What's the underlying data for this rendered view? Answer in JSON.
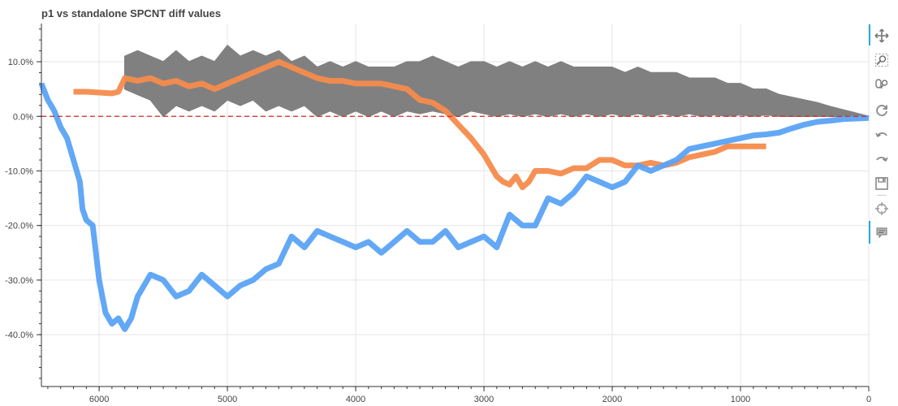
{
  "chart_data": {
    "type": "line",
    "title": "p1 vs standalone SPCNT diff values",
    "xlabel": "",
    "ylabel": "",
    "xlim": [
      6450,
      0
    ],
    "ylim": [
      -49.5,
      17
    ],
    "x_ticks": [
      6000,
      5000,
      4000,
      3000,
      2000,
      1000,
      0
    ],
    "x_tick_labels": [
      "6000",
      "5000",
      "4000",
      "3000",
      "2000",
      "1000",
      "0"
    ],
    "y_ticks": [
      10,
      0,
      -10,
      -20,
      -30,
      -40
    ],
    "y_tick_labels": [
      "10.0%",
      "0.0%",
      "-10.0%",
      "-20.0%",
      "-30.0%",
      "-40.0%"
    ],
    "grid": true,
    "reference_line": {
      "y": 0,
      "color": "#d62728",
      "style": "dashed"
    },
    "series": [
      {
        "color": "#808080",
        "style": "band",
        "x": [
          5800,
          5700,
          5600,
          5500,
          5400,
          5300,
          5200,
          5100,
          5000,
          4900,
          4800,
          4700,
          4600,
          4500,
          4400,
          4300,
          4200,
          4100,
          4000,
          3900,
          3800,
          3700,
          3600,
          3500,
          3400,
          3300,
          3200,
          3100,
          3000,
          2900,
          2800,
          2700,
          2600,
          2500,
          2400,
          2300,
          2200,
          2100,
          2000,
          1900,
          1800,
          1700,
          1600,
          1500,
          1400,
          1300,
          1200,
          1100,
          1000,
          900,
          800,
          700,
          600,
          500,
          400,
          300,
          200,
          100,
          0
        ],
        "upper": [
          11,
          12,
          11,
          10,
          12,
          10,
          11,
          10,
          13,
          11,
          12,
          11,
          12,
          10,
          11,
          9,
          10,
          9,
          10,
          9,
          9,
          9,
          10,
          10,
          11,
          10,
          9,
          10,
          10,
          9,
          10,
          9,
          10,
          9,
          10,
          9,
          9,
          9,
          9,
          8,
          9,
          8,
          8,
          8,
          7,
          7,
          7,
          6,
          6,
          5,
          5,
          4,
          3.5,
          3,
          2.5,
          1.8,
          1.2,
          0.6,
          0
        ],
        "lower": [
          5,
          4,
          3,
          0,
          2,
          1,
          2,
          1,
          3,
          2,
          3,
          1,
          2,
          1,
          2,
          0,
          1,
          0,
          1,
          0,
          1,
          0,
          1,
          0.5,
          1,
          0.5,
          0,
          1,
          0.5,
          0,
          0.5,
          0,
          0.5,
          0,
          0.5,
          0,
          0.5,
          0,
          0.5,
          0,
          0.5,
          0,
          0.5,
          0,
          0.5,
          0,
          0.3,
          0,
          0.3,
          0,
          0.3,
          0,
          0,
          0,
          0,
          0,
          0,
          0,
          0
        ]
      },
      {
        "color": "#f58b4c",
        "style": "thick",
        "x": [
          6200,
          6100,
          5900,
          5850,
          5800,
          5700,
          5600,
          5500,
          5400,
          5300,
          5200,
          5100,
          5000,
          4900,
          4800,
          4700,
          4600,
          4500,
          4400,
          4300,
          4200,
          4100,
          4000,
          3900,
          3800,
          3700,
          3600,
          3500,
          3400,
          3300,
          3200,
          3100,
          3000,
          2950,
          2900,
          2850,
          2800,
          2750,
          2700,
          2650,
          2600,
          2500,
          2400,
          2300,
          2200,
          2100,
          2000,
          1900,
          1800,
          1700,
          1600,
          1500,
          1400,
          1300,
          1200,
          1100,
          1000,
          900,
          800
        ],
        "values": [
          4.5,
          4.5,
          4.2,
          4.5,
          7,
          6.5,
          7,
          6,
          6.5,
          5.5,
          6,
          5,
          6,
          7,
          8,
          9,
          10,
          9,
          8,
          7,
          6.5,
          6.5,
          6,
          6,
          6,
          5.5,
          5,
          3,
          2.5,
          1,
          -1.5,
          -4,
          -7,
          -9,
          -11,
          -12,
          -12.5,
          -11,
          -13,
          -12,
          -10,
          -10,
          -10.5,
          -9.5,
          -9.5,
          -8,
          -8,
          -9,
          -9,
          -8.5,
          -9,
          -8.5,
          -7.5,
          -7,
          -6.5,
          -5.5,
          -5.5,
          -5.5,
          -5.5
        ]
      },
      {
        "color": "#5aa3f5",
        "style": "thick",
        "x": [
          6450,
          6400,
          6350,
          6300,
          6250,
          6200,
          6150,
          6130,
          6100,
          6050,
          6000,
          5950,
          5900,
          5850,
          5800,
          5750,
          5700,
          5650,
          5600,
          5500,
          5400,
          5300,
          5200,
          5100,
          5000,
          4900,
          4800,
          4700,
          4600,
          4500,
          4400,
          4300,
          4200,
          4100,
          4000,
          3900,
          3800,
          3700,
          3600,
          3500,
          3400,
          3300,
          3200,
          3100,
          3000,
          2900,
          2800,
          2700,
          2600,
          2500,
          2400,
          2300,
          2200,
          2100,
          2000,
          1900,
          1800,
          1700,
          1600,
          1500,
          1400,
          1300,
          1200,
          1100,
          1000,
          900,
          800,
          700,
          600,
          500,
          400,
          300,
          200,
          100,
          0
        ],
        "values": [
          6,
          3,
          1,
          -2,
          -4,
          -8,
          -12,
          -17,
          -19,
          -20,
          -30,
          -36,
          -38,
          -37,
          -39,
          -37,
          -33,
          -31,
          -29,
          -30,
          -33,
          -32,
          -29,
          -31,
          -33,
          -31,
          -30,
          -28,
          -27,
          -22,
          -24,
          -21,
          -22,
          -23,
          -24,
          -23,
          -25,
          -23,
          -21,
          -23,
          -23,
          -21,
          -24,
          -23,
          -22,
          -24,
          -18,
          -20,
          -20,
          -15,
          -16,
          -14,
          -11,
          -12,
          -13,
          -12,
          -9,
          -10,
          -9,
          -8,
          -6,
          -5.5,
          -5,
          -4.5,
          -4,
          -3.5,
          -3.3,
          -3,
          -2.2,
          -1.5,
          -1,
          -0.8,
          -0.5,
          -0.4,
          -0.3
        ]
      }
    ]
  },
  "toolbar": {
    "active_color": "#26aae1",
    "icons": [
      "pan-icon",
      "box-zoom-icon",
      "wheel-zoom-icon",
      "reset-icon",
      "undo-icon",
      "redo-icon",
      "save-icon",
      "crosshair-icon",
      "hover-icon"
    ]
  }
}
